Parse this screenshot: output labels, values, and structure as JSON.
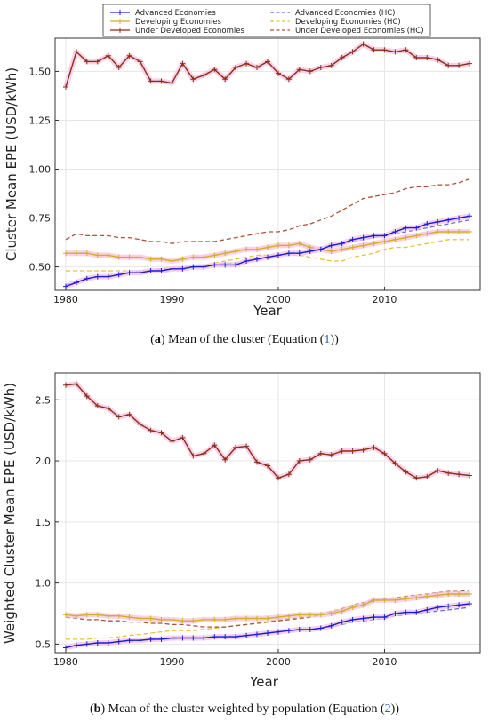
{
  "legend": {
    "entries": [
      {
        "label": "Advanced Economies",
        "color": "#1a1adb",
        "style": "solid-plus"
      },
      {
        "label": "Developing Economies",
        "color": "#d4b01e",
        "style": "solid-plus"
      },
      {
        "label": "Under Developed Economies",
        "color": "#8b2e16",
        "style": "solid-plus"
      },
      {
        "label": "Advanced Economies (HC)",
        "color": "#6a6ae8",
        "style": "dashed"
      },
      {
        "label": "Developing Economies (HC)",
        "color": "#e6c23a",
        "style": "dashed"
      },
      {
        "label": "Under Developed Economies (HC)",
        "color": "#a8533a",
        "style": "dashed"
      }
    ]
  },
  "captions": {
    "a_prefix": "(",
    "a_letter": "a",
    "a_text": ") Mean of the cluster (Equation (",
    "a_ref": "1",
    "a_suffix": "))",
    "b_prefix": "(",
    "b_letter": "b",
    "b_text": ") Mean of the cluster weighted by population (Equation (",
    "b_ref": "2",
    "b_suffix": "))"
  },
  "chart_data": [
    {
      "type": "line",
      "xlabel": "Year",
      "ylabel": "Cluster Mean EPE (USD/kWh)",
      "xlim": [
        1979,
        2019
      ],
      "ylim": [
        0.38,
        1.67
      ],
      "xticks": [
        1980,
        1990,
        2000,
        2010
      ],
      "yticks": [
        0.5,
        0.75,
        1.0,
        1.25,
        1.5
      ],
      "ytick_labels": [
        "0.50",
        "0.75",
        "1.00",
        "1.25",
        "1.50"
      ],
      "grid": true,
      "legend_position": "top",
      "x": [
        1980,
        1981,
        1982,
        1983,
        1984,
        1985,
        1986,
        1987,
        1988,
        1989,
        1990,
        1991,
        1992,
        1993,
        1994,
        1995,
        1996,
        1997,
        1998,
        1999,
        2000,
        2001,
        2002,
        2003,
        2004,
        2005,
        2006,
        2007,
        2008,
        2009,
        2010,
        2011,
        2012,
        2013,
        2014,
        2015,
        2016,
        2017,
        2018
      ],
      "series": [
        {
          "name": "Advanced Economies",
          "color": "#1a1adb",
          "style": "solid-plus",
          "values": [
            0.4,
            0.42,
            0.44,
            0.45,
            0.45,
            0.46,
            0.47,
            0.47,
            0.48,
            0.48,
            0.49,
            0.49,
            0.5,
            0.5,
            0.51,
            0.51,
            0.51,
            0.53,
            0.54,
            0.55,
            0.56,
            0.57,
            0.57,
            0.58,
            0.59,
            0.61,
            0.62,
            0.64,
            0.65,
            0.66,
            0.66,
            0.68,
            0.7,
            0.7,
            0.72,
            0.73,
            0.74,
            0.75,
            0.76
          ]
        },
        {
          "name": "Developing Economies",
          "color": "#d4b01e",
          "style": "solid-plus",
          "values": [
            0.57,
            0.57,
            0.57,
            0.56,
            0.56,
            0.55,
            0.55,
            0.55,
            0.54,
            0.54,
            0.53,
            0.54,
            0.55,
            0.55,
            0.56,
            0.57,
            0.58,
            0.59,
            0.59,
            0.6,
            0.61,
            0.61,
            0.62,
            0.6,
            0.59,
            0.58,
            0.59,
            0.6,
            0.61,
            0.62,
            0.63,
            0.64,
            0.65,
            0.66,
            0.67,
            0.68,
            0.68,
            0.68,
            0.68
          ]
        },
        {
          "name": "Under Developed Economies",
          "color": "#8b2e16",
          "style": "solid-plus",
          "values": [
            1.42,
            1.6,
            1.55,
            1.55,
            1.58,
            1.52,
            1.58,
            1.55,
            1.45,
            1.45,
            1.44,
            1.54,
            1.46,
            1.48,
            1.51,
            1.46,
            1.52,
            1.54,
            1.52,
            1.55,
            1.49,
            1.46,
            1.51,
            1.5,
            1.52,
            1.53,
            1.57,
            1.6,
            1.64,
            1.61,
            1.61,
            1.6,
            1.61,
            1.57,
            1.57,
            1.56,
            1.53,
            1.53,
            1.54
          ]
        },
        {
          "name": "Advanced Economies (HC)",
          "color": "#6a6ae8",
          "style": "dashed",
          "values": [
            0.41,
            0.42,
            0.44,
            0.45,
            0.45,
            0.46,
            0.47,
            0.48,
            0.48,
            0.49,
            0.49,
            0.5,
            0.5,
            0.51,
            0.51,
            0.52,
            0.52,
            0.53,
            0.54,
            0.55,
            0.56,
            0.57,
            0.58,
            0.59,
            0.6,
            0.61,
            0.62,
            0.63,
            0.64,
            0.65,
            0.66,
            0.67,
            0.68,
            0.69,
            0.7,
            0.71,
            0.72,
            0.73,
            0.74
          ]
        },
        {
          "name": "Developing Economies (HC)",
          "color": "#e6c23a",
          "style": "dashed",
          "values": [
            0.48,
            0.48,
            0.48,
            0.48,
            0.48,
            0.48,
            0.48,
            0.48,
            0.48,
            0.48,
            0.48,
            0.49,
            0.5,
            0.51,
            0.52,
            0.53,
            0.54,
            0.55,
            0.56,
            0.56,
            0.56,
            0.56,
            0.56,
            0.55,
            0.54,
            0.53,
            0.53,
            0.55,
            0.56,
            0.57,
            0.59,
            0.6,
            0.6,
            0.61,
            0.62,
            0.63,
            0.64,
            0.64,
            0.64
          ]
        },
        {
          "name": "Under Developed Economies (HC)",
          "color": "#a8533a",
          "style": "dashed",
          "values": [
            0.64,
            0.67,
            0.66,
            0.66,
            0.66,
            0.65,
            0.65,
            0.64,
            0.63,
            0.63,
            0.62,
            0.63,
            0.63,
            0.63,
            0.63,
            0.64,
            0.65,
            0.66,
            0.67,
            0.68,
            0.68,
            0.69,
            0.71,
            0.72,
            0.74,
            0.76,
            0.79,
            0.82,
            0.85,
            0.86,
            0.87,
            0.88,
            0.9,
            0.91,
            0.91,
            0.92,
            0.92,
            0.93,
            0.95
          ]
        }
      ]
    },
    {
      "type": "line",
      "xlabel": "Year",
      "ylabel": "Weighted Cluster Mean EPE (USD/kWh)",
      "xlim": [
        1979,
        2019
      ],
      "ylim": [
        0.43,
        2.72
      ],
      "xticks": [
        1980,
        1990,
        2000,
        2010
      ],
      "yticks": [
        0.5,
        1.0,
        1.5,
        2.0,
        2.5
      ],
      "ytick_labels": [
        "0.5",
        "1.0",
        "1.5",
        "2.0",
        "2.5"
      ],
      "grid": true,
      "x": [
        1980,
        1981,
        1982,
        1983,
        1984,
        1985,
        1986,
        1987,
        1988,
        1989,
        1990,
        1991,
        1992,
        1993,
        1994,
        1995,
        1996,
        1997,
        1998,
        1999,
        2000,
        2001,
        2002,
        2003,
        2004,
        2005,
        2006,
        2007,
        2008,
        2009,
        2010,
        2011,
        2012,
        2013,
        2014,
        2015,
        2016,
        2017,
        2018
      ],
      "series": [
        {
          "name": "Advanced Economies",
          "color": "#1a1adb",
          "style": "solid-plus",
          "values": [
            0.47,
            0.49,
            0.5,
            0.51,
            0.51,
            0.52,
            0.53,
            0.53,
            0.54,
            0.54,
            0.55,
            0.55,
            0.55,
            0.55,
            0.56,
            0.56,
            0.56,
            0.57,
            0.58,
            0.59,
            0.6,
            0.61,
            0.62,
            0.62,
            0.63,
            0.65,
            0.68,
            0.7,
            0.71,
            0.72,
            0.72,
            0.75,
            0.76,
            0.76,
            0.78,
            0.8,
            0.81,
            0.82,
            0.83
          ]
        },
        {
          "name": "Developing Economies",
          "color": "#d4b01e",
          "style": "solid-plus",
          "values": [
            0.74,
            0.73,
            0.74,
            0.74,
            0.73,
            0.73,
            0.72,
            0.71,
            0.71,
            0.7,
            0.7,
            0.69,
            0.69,
            0.7,
            0.7,
            0.7,
            0.71,
            0.71,
            0.71,
            0.71,
            0.72,
            0.73,
            0.74,
            0.74,
            0.74,
            0.75,
            0.77,
            0.8,
            0.82,
            0.86,
            0.86,
            0.86,
            0.87,
            0.88,
            0.89,
            0.9,
            0.91,
            0.91,
            0.91
          ]
        },
        {
          "name": "Under Developed Economies",
          "color": "#8b2e16",
          "style": "solid-plus",
          "values": [
            2.62,
            2.63,
            2.53,
            2.45,
            2.43,
            2.36,
            2.38,
            2.3,
            2.25,
            2.23,
            2.16,
            2.19,
            2.04,
            2.06,
            2.13,
            2.01,
            2.11,
            2.12,
            1.99,
            1.96,
            1.86,
            1.89,
            2.0,
            2.01,
            2.06,
            2.05,
            2.08,
            2.08,
            2.09,
            2.11,
            2.06,
            1.98,
            1.91,
            1.86,
            1.87,
            1.92,
            1.9,
            1.89,
            1.88
          ]
        },
        {
          "name": "Advanced Economies (HC)",
          "color": "#6a6ae8",
          "style": "dashed",
          "values": [
            0.48,
            0.49,
            0.5,
            0.51,
            0.51,
            0.52,
            0.52,
            0.53,
            0.53,
            0.54,
            0.54,
            0.55,
            0.55,
            0.55,
            0.56,
            0.56,
            0.57,
            0.57,
            0.58,
            0.59,
            0.6,
            0.61,
            0.61,
            0.62,
            0.63,
            0.64,
            0.66,
            0.68,
            0.69,
            0.7,
            0.71,
            0.73,
            0.74,
            0.75,
            0.76,
            0.77,
            0.78,
            0.79,
            0.8
          ]
        },
        {
          "name": "Developing Economies (HC)",
          "color": "#e6c23a",
          "style": "dashed",
          "values": [
            0.54,
            0.54,
            0.54,
            0.55,
            0.55,
            0.56,
            0.57,
            0.58,
            0.59,
            0.6,
            0.61,
            0.61,
            0.61,
            0.62,
            0.63,
            0.64,
            0.65,
            0.66,
            0.67,
            0.68,
            0.7,
            0.71,
            0.72,
            0.73,
            0.75,
            0.77,
            0.79,
            0.81,
            0.83,
            0.85,
            0.86,
            0.87,
            0.88,
            0.88,
            0.89,
            0.89,
            0.9,
            0.9,
            0.9
          ]
        },
        {
          "name": "Under Developed Economies (HC)",
          "color": "#a8533a",
          "style": "dashed",
          "values": [
            0.72,
            0.71,
            0.7,
            0.7,
            0.69,
            0.69,
            0.68,
            0.68,
            0.67,
            0.67,
            0.66,
            0.66,
            0.65,
            0.64,
            0.64,
            0.64,
            0.65,
            0.66,
            0.67,
            0.68,
            0.69,
            0.7,
            0.71,
            0.72,
            0.74,
            0.76,
            0.79,
            0.82,
            0.84,
            0.86,
            0.87,
            0.88,
            0.89,
            0.9,
            0.91,
            0.92,
            0.93,
            0.93,
            0.94
          ]
        }
      ]
    }
  ]
}
